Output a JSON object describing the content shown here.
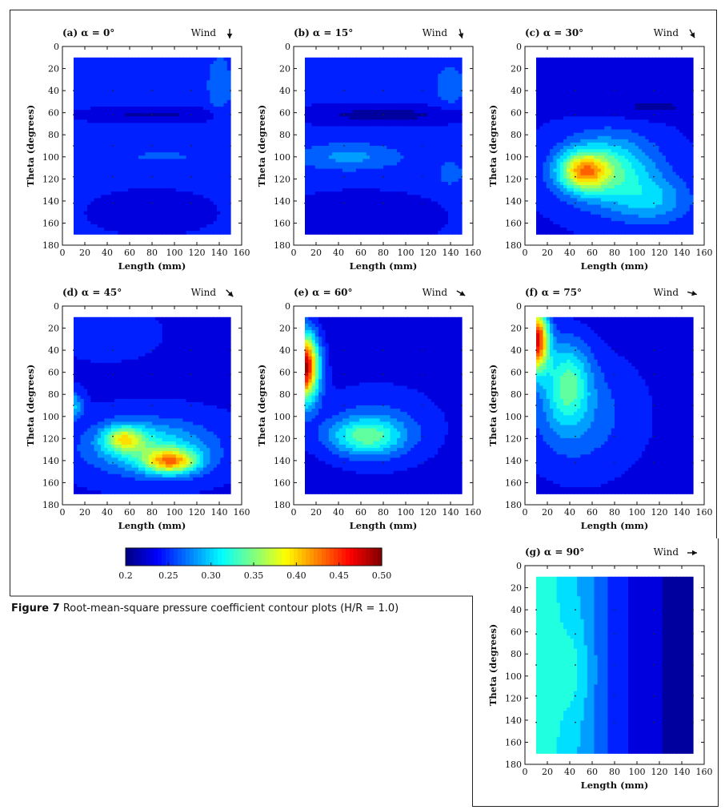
{
  "figure": {
    "caption_lead": "Figure 7",
    "caption_text": "Root-mean-square pressure coefficient contour plots (H/R = 1.0)"
  },
  "chart_data": [
    {
      "type": "heatmap",
      "id": "a",
      "title": "(a) α = 0°",
      "wind_label": "Wind",
      "wind_angle_deg": 0,
      "xlabel": "Length (mm)",
      "ylabel": "Theta (degrees)",
      "xlim": [
        0,
        160
      ],
      "ylim": [
        180,
        0
      ],
      "x_data_range": [
        10,
        150
      ],
      "y_data_range": [
        10,
        170
      ],
      "xticks": [
        0,
        20,
        40,
        60,
        80,
        100,
        120,
        140,
        160
      ],
      "yticks": [
        0,
        20,
        40,
        60,
        80,
        100,
        120,
        140,
        160,
        180
      ],
      "clim": [
        0.2,
        0.5
      ]
    },
    {
      "type": "heatmap",
      "id": "b",
      "title": "(b) α = 15°",
      "wind_label": "Wind",
      "wind_angle_deg": 15,
      "xlabel": "Length (mm)",
      "ylabel": "Theta (degrees)",
      "xlim": [
        0,
        160
      ],
      "ylim": [
        180,
        0
      ],
      "x_data_range": [
        10,
        150
      ],
      "y_data_range": [
        10,
        170
      ],
      "xticks": [
        0,
        20,
        40,
        60,
        80,
        100,
        120,
        140,
        160
      ],
      "yticks": [
        0,
        20,
        40,
        60,
        80,
        100,
        120,
        140,
        160,
        180
      ],
      "clim": [
        0.2,
        0.5
      ]
    },
    {
      "type": "heatmap",
      "id": "c",
      "title": "(c) α = 30°",
      "wind_label": "Wind",
      "wind_angle_deg": 30,
      "xlabel": "Length (mm)",
      "ylabel": "Theta (degrees)",
      "xlim": [
        0,
        160
      ],
      "ylim": [
        180,
        0
      ],
      "x_data_range": [
        10,
        150
      ],
      "y_data_range": [
        10,
        170
      ],
      "xticks": [
        0,
        20,
        40,
        60,
        80,
        100,
        120,
        140,
        160
      ],
      "yticks": [
        0,
        20,
        40,
        60,
        80,
        100,
        120,
        140,
        160,
        180
      ],
      "clim": [
        0.2,
        0.5
      ]
    },
    {
      "type": "heatmap",
      "id": "d",
      "title": "(d) α = 45°",
      "wind_label": "Wind",
      "wind_angle_deg": 45,
      "xlabel": "Length (mm)",
      "ylabel": "Theta (degrees)",
      "xlim": [
        0,
        160
      ],
      "ylim": [
        180,
        0
      ],
      "x_data_range": [
        10,
        150
      ],
      "y_data_range": [
        10,
        170
      ],
      "xticks": [
        0,
        20,
        40,
        60,
        80,
        100,
        120,
        140,
        160
      ],
      "yticks": [
        0,
        20,
        40,
        60,
        80,
        100,
        120,
        140,
        160,
        180
      ],
      "clim": [
        0.2,
        0.5
      ]
    },
    {
      "type": "heatmap",
      "id": "e",
      "title": "(e) α = 60°",
      "wind_label": "Wind",
      "wind_angle_deg": 60,
      "xlabel": "Length (mm)",
      "ylabel": "Theta (degrees)",
      "xlim": [
        0,
        160
      ],
      "ylim": [
        180,
        0
      ],
      "x_data_range": [
        10,
        150
      ],
      "y_data_range": [
        10,
        170
      ],
      "xticks": [
        0,
        20,
        40,
        60,
        80,
        100,
        120,
        140,
        160
      ],
      "yticks": [
        0,
        20,
        40,
        60,
        80,
        100,
        120,
        140,
        160,
        180
      ],
      "clim": [
        0.2,
        0.5
      ]
    },
    {
      "type": "heatmap",
      "id": "f",
      "title": "(f) α = 75°",
      "wind_label": "Wind",
      "wind_angle_deg": 75,
      "xlabel": "Length (mm)",
      "ylabel": "Theta (degrees)",
      "xlim": [
        0,
        160
      ],
      "ylim": [
        180,
        0
      ],
      "x_data_range": [
        10,
        150
      ],
      "y_data_range": [
        10,
        170
      ],
      "xticks": [
        0,
        20,
        40,
        60,
        80,
        100,
        120,
        140,
        160
      ],
      "yticks": [
        0,
        20,
        40,
        60,
        80,
        100,
        120,
        140,
        160,
        180
      ],
      "clim": [
        0.2,
        0.5
      ]
    },
    {
      "type": "heatmap",
      "id": "g",
      "title": "(g) α = 90°",
      "wind_label": "Wind",
      "wind_angle_deg": 90,
      "xlabel": "Length (mm)",
      "ylabel": "Theta (degrees)",
      "xlim": [
        0,
        160
      ],
      "ylim": [
        180,
        0
      ],
      "x_data_range": [
        10,
        150
      ],
      "y_data_range": [
        10,
        170
      ],
      "xticks": [
        0,
        20,
        40,
        60,
        80,
        100,
        120,
        140,
        160
      ],
      "yticks": [
        0,
        20,
        40,
        60,
        80,
        100,
        120,
        140,
        160,
        180
      ],
      "clim": [
        0.2,
        0.5
      ]
    }
  ],
  "colorbar": {
    "range": [
      0.2,
      0.5
    ],
    "ticks": [
      "0.2",
      "0.25",
      "0.30",
      "0.35",
      "0.40",
      "0.45",
      "0.50"
    ],
    "colormap": "jet"
  }
}
